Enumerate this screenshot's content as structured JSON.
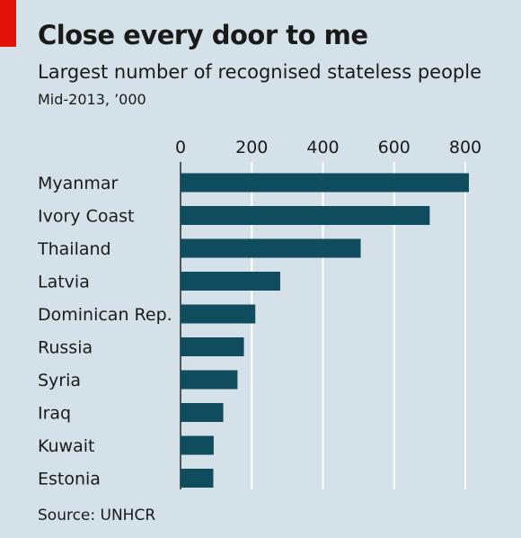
{
  "header": {
    "title": "Close every door to me",
    "subtitle": "Largest number of recognised stateless people",
    "unit_note": "Mid-2013, ’000"
  },
  "footer": {
    "source": "Source: UNHCR"
  },
  "colors": {
    "bar": "#0f4c5e",
    "background": "#d4e1e8",
    "grid": "#ffffff",
    "accent": "#e3120b"
  },
  "chart_data": {
    "type": "bar",
    "orientation": "horizontal",
    "title": "Close every door to me",
    "subtitle": "Largest number of recognised stateless people",
    "categories": [
      "Myanmar",
      "Ivory Coast",
      "Thailand",
      "Latvia",
      "Dominican Rep.",
      "Russia",
      "Syria",
      "Iraq",
      "Kuwait",
      "Estonia"
    ],
    "values": [
      810,
      700,
      506,
      280,
      210,
      178,
      160,
      120,
      93,
      92
    ],
    "xlim": [
      0,
      800
    ],
    "xticks": [
      0,
      200,
      400,
      600,
      800
    ],
    "axis_position": "top",
    "grid": true,
    "legend": "none"
  }
}
